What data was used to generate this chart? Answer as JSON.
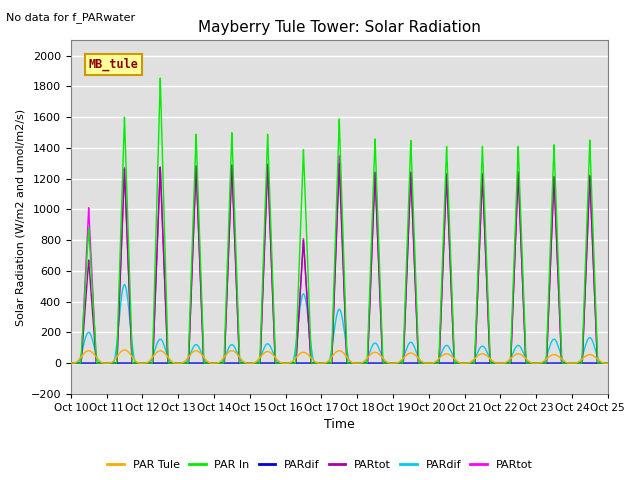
{
  "title": "Mayberry Tule Tower: Solar Radiation",
  "ylabel": "Solar Radiation (W/m2 and umol/m2/s)",
  "xlabel": "Time",
  "top_label": "No data for f_PARwater",
  "legend_label": "MB_tule",
  "ylim": [
    -200,
    2100
  ],
  "yticks": [
    -200,
    0,
    200,
    400,
    600,
    800,
    1000,
    1200,
    1400,
    1600,
    1800,
    2000
  ],
  "xtick_labels": [
    "Oct 10",
    "Oct 11",
    "Oct 12",
    "Oct 13",
    "Oct 14",
    "Oct 15",
    "Oct 16",
    "Oct 17",
    "Oct 18",
    "Oct 19",
    "Oct 20",
    "Oct 21",
    "Oct 22",
    "Oct 23",
    "Oct 24",
    "Oct 25"
  ],
  "num_days": 15,
  "background_color": "#e0e0e0",
  "legend_entries": [
    {
      "label": "PAR Tule",
      "color": "#ffaa00"
    },
    {
      "label": "PAR In",
      "color": "#00ee00"
    },
    {
      "label": "PARdif",
      "color": "#0000dd"
    },
    {
      "label": "PARtot",
      "color": "#aa00aa"
    },
    {
      "label": "PARdif",
      "color": "#00ccee"
    },
    {
      "label": "PARtot",
      "color": "#ff00ff"
    }
  ],
  "day_peaks": {
    "PAR_tule": [
      80,
      85,
      80,
      80,
      80,
      75,
      70,
      80,
      70,
      65,
      60,
      60,
      60,
      55,
      55
    ],
    "PAR_in": [
      880,
      1600,
      1855,
      1490,
      1500,
      1490,
      1390,
      1590,
      1460,
      1450,
      1410,
      1410,
      1410,
      1420,
      1450
    ],
    "PARtot_p": [
      670,
      1260,
      1275,
      1280,
      1290,
      1295,
      800,
      1300,
      1240,
      1240,
      1230,
      1230,
      1240,
      1210,
      1215
    ],
    "PARdif_c": [
      200,
      510,
      155,
      120,
      120,
      125,
      450,
      350,
      130,
      135,
      115,
      110,
      115,
      155,
      165
    ],
    "PARtot_c": [
      1010,
      1270,
      1275,
      1285,
      1290,
      1295,
      810,
      1350,
      1245,
      1245,
      1235,
      1235,
      1245,
      1215,
      1220
    ]
  },
  "day_widths": {
    "PAR_tule": 0.42,
    "PAR_in": 0.22,
    "PARtot_p": 0.21,
    "PARdif_c": 0.32,
    "PARtot_c": 0.21
  }
}
